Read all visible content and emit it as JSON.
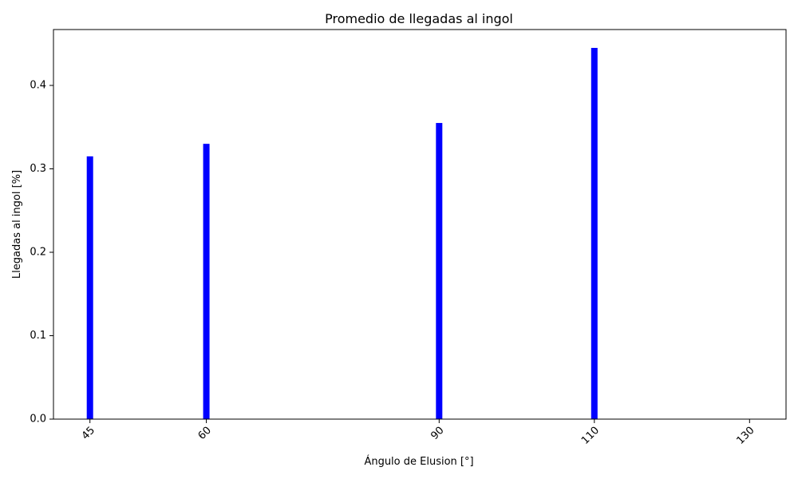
{
  "chart_data": {
    "type": "bar",
    "title": "Promedio de llegadas al ingol",
    "xlabel": "Ángulo de Elusion [°]",
    "ylabel": "Llegadas al ingol [%]",
    "x": [
      45,
      60,
      90,
      110,
      130
    ],
    "values": [
      0.315,
      0.33,
      0.355,
      0.445,
      0
    ],
    "xlim": [
      40.3,
      134.7
    ],
    "ylim": [
      0,
      0.467
    ],
    "xticks": [
      "45",
      "60",
      "90",
      "110",
      "130"
    ],
    "yticks": [
      "0.0",
      "0.1",
      "0.2",
      "0.3",
      "0.4"
    ],
    "bar_color": "#0000ff",
    "grid": false
  }
}
